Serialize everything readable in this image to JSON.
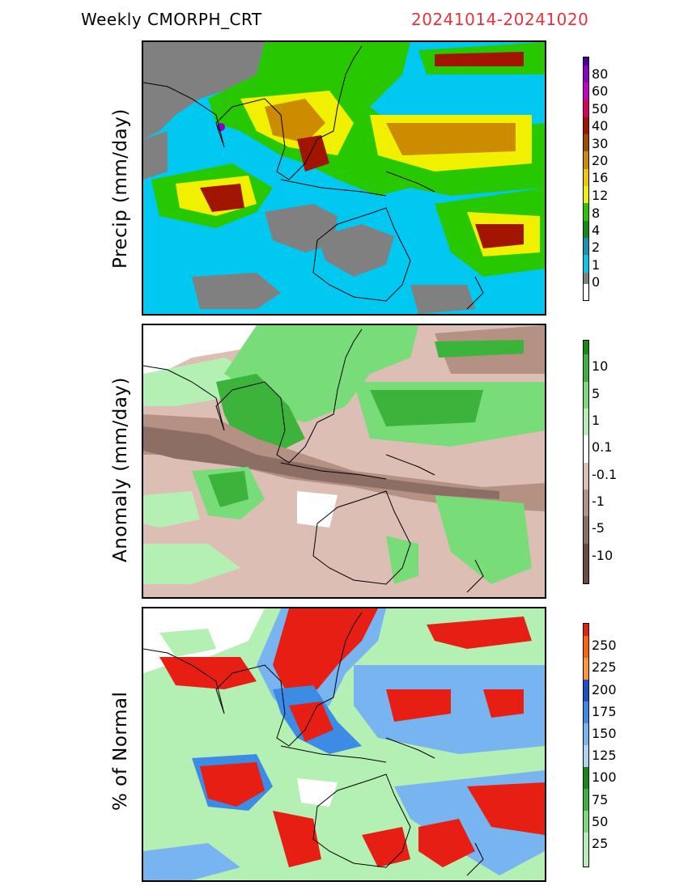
{
  "header": {
    "title": "Weekly  CMORPH_CRT",
    "date_range": "20241014-20241020"
  },
  "panels": [
    {
      "id": "precip",
      "ylabel": "Precip  (mm/day)",
      "colorbar": {
        "ticks": [
          "80",
          "60",
          "50",
          "40",
          "30",
          "20",
          "16",
          "12",
          "8",
          "4",
          "2",
          "1",
          "0"
        ],
        "colors": [
          "#4b0096",
          "#8c00c8",
          "#c800c8",
          "#dc0064",
          "#a01400",
          "#a04b00",
          "#cd8c00",
          "#f0c800",
          "#f0f000",
          "#28c800",
          "#148c14",
          "#1496b4",
          "#00c8f0",
          "#808080"
        ]
      }
    },
    {
      "id": "anomaly",
      "ylabel": "Anomaly  (mm/day)",
      "colorbar": {
        "ticks": [
          "10",
          "5",
          "1",
          "0.1",
          "-0.1",
          "-1",
          "-5",
          "-10"
        ],
        "colors": [
          "#148c14",
          "#3cb43c",
          "#78dc78",
          "#b4f0b4",
          "#ffffff",
          "#dcbeb4",
          "#b49182",
          "#8c6e64",
          "#6e4b41"
        ]
      }
    },
    {
      "id": "percent",
      "ylabel": "%  of  Normal",
      "colorbar": {
        "ticks": [
          "250",
          "225",
          "200",
          "175",
          "150",
          "125",
          "100",
          "75",
          "50",
          "25"
        ],
        "colors": [
          "#e61e14",
          "#ff6400",
          "#ff9632",
          "#1e50c8",
          "#3c8ce6",
          "#78b4f0",
          "#afd2f5",
          "#148c14",
          "#3cb43c",
          "#78dc78",
          "#b4f0b4"
        ]
      }
    }
  ]
}
